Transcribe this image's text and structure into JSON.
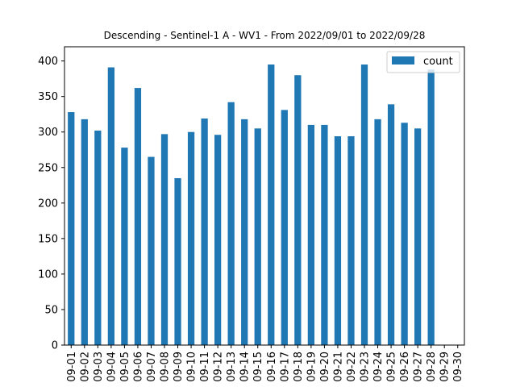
{
  "chart_data": {
    "type": "bar",
    "title": "Descending - Sentinel-1 A - WV1 - From 2022/09/01 to 2022/09/28",
    "xlabel": "",
    "ylabel": "",
    "ylim": [
      0,
      420
    ],
    "yticks": [
      0,
      50,
      100,
      150,
      200,
      250,
      300,
      350,
      400
    ],
    "grid": false,
    "legend_position": "top-right",
    "categories": [
      "09-01",
      "09-02",
      "09-03",
      "09-04",
      "09-05",
      "09-06",
      "09-07",
      "09-08",
      "09-09",
      "09-10",
      "09-11",
      "09-12",
      "09-13",
      "09-14",
      "09-15",
      "09-16",
      "09-17",
      "09-18",
      "09-19",
      "09-20",
      "09-21",
      "09-22",
      "09-23",
      "09-24",
      "09-25",
      "09-26",
      "09-27",
      "09-28",
      "09-29",
      "09-30"
    ],
    "series": [
      {
        "name": "count",
        "color": "#1f77b4",
        "values": [
          328,
          318,
          302,
          391,
          278,
          362,
          265,
          297,
          235,
          300,
          319,
          296,
          342,
          318,
          305,
          395,
          331,
          380,
          310,
          310,
          294,
          294,
          395,
          318,
          339,
          313,
          305,
          388,
          0,
          0
        ]
      }
    ]
  }
}
